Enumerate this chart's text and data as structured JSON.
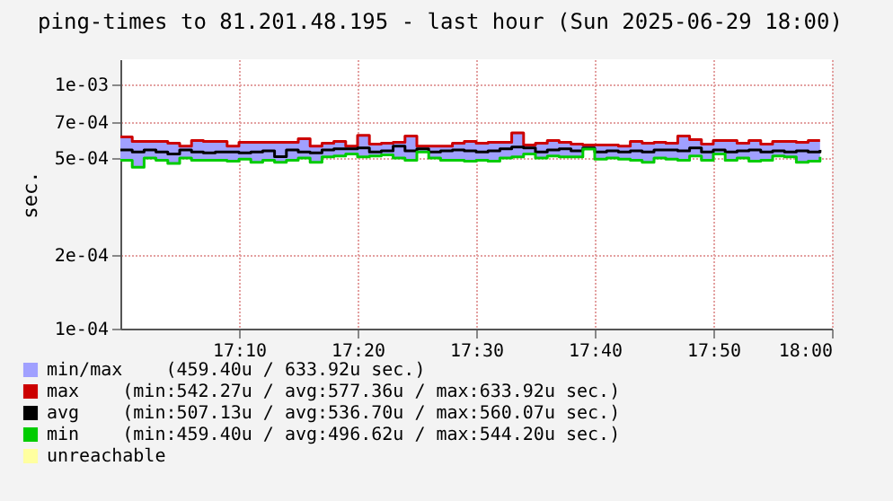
{
  "chart_data": {
    "type": "step",
    "title": "ping-times to 81.201.48.195 - last hour (Sun 2025-06-29 18:00)",
    "ylabel": "sec.",
    "x": [
      "2025-06-29T17:00",
      "2025-06-29T17:01",
      "2025-06-29T17:02",
      "2025-06-29T17:03",
      "2025-06-29T17:04",
      "2025-06-29T17:05",
      "2025-06-29T17:06",
      "2025-06-29T17:07",
      "2025-06-29T17:08",
      "2025-06-29T17:09",
      "2025-06-29T17:10",
      "2025-06-29T17:11",
      "2025-06-29T17:12",
      "2025-06-29T17:13",
      "2025-06-29T17:14",
      "2025-06-29T17:15",
      "2025-06-29T17:16",
      "2025-06-29T17:17",
      "2025-06-29T17:18",
      "2025-06-29T17:19",
      "2025-06-29T17:20",
      "2025-06-29T17:21",
      "2025-06-29T17:22",
      "2025-06-29T17:23",
      "2025-06-29T17:24",
      "2025-06-29T17:25",
      "2025-06-29T17:26",
      "2025-06-29T17:27",
      "2025-06-29T17:28",
      "2025-06-29T17:29",
      "2025-06-29T17:30",
      "2025-06-29T17:31",
      "2025-06-29T17:32",
      "2025-06-29T17:33",
      "2025-06-29T17:34",
      "2025-06-29T17:35",
      "2025-06-29T17:36",
      "2025-06-29T17:37",
      "2025-06-29T17:38",
      "2025-06-29T17:39",
      "2025-06-29T17:40",
      "2025-06-29T17:41",
      "2025-06-29T17:42",
      "2025-06-29T17:43",
      "2025-06-29T17:44",
      "2025-06-29T17:45",
      "2025-06-29T17:46",
      "2025-06-29T17:47",
      "2025-06-29T17:48",
      "2025-06-29T17:49",
      "2025-06-29T17:50",
      "2025-06-29T17:51",
      "2025-06-29T17:52",
      "2025-06-29T17:53",
      "2025-06-29T17:54",
      "2025-06-29T17:55",
      "2025-06-29T17:56",
      "2025-06-29T17:57",
      "2025-06-29T17:58",
      "2025-06-29T17:59"
    ],
    "xlim": [
      "2025-06-29T17:00",
      "2025-06-29T18:00"
    ],
    "xticks": [
      {
        "value": "2025-06-29T17:10",
        "label": "17:10"
      },
      {
        "value": "2025-06-29T17:20",
        "label": "17:20"
      },
      {
        "value": "2025-06-29T17:30",
        "label": "17:30"
      },
      {
        "value": "2025-06-29T17:40",
        "label": "17:40"
      },
      {
        "value": "2025-06-29T17:50",
        "label": "17:50"
      },
      {
        "value": "2025-06-29T18:00",
        "label": "18:00"
      }
    ],
    "ylim": [
      0.0001,
      0.00127
    ],
    "log": true,
    "yticks": [
      {
        "value": 0.0001,
        "label": "1e-04"
      },
      {
        "value": 0.0002,
        "label": "2e-04"
      },
      {
        "value": 0.0005,
        "label": "5e-04"
      },
      {
        "value": 0.0007,
        "label": "7e-04"
      },
      {
        "value": 0.001,
        "label": "1e-03"
      }
    ],
    "grid": true,
    "legend": "bottom",
    "series": [
      {
        "name": "min/max    (459.40u / 633.92u sec.)",
        "type": "area",
        "color": "#a0a0ff",
        "values": [
          null,
          null,
          null,
          null,
          null,
          null,
          null,
          null,
          null,
          null,
          null,
          null,
          null,
          null,
          null,
          null,
          null,
          null,
          null,
          null,
          null,
          null,
          null,
          null,
          null,
          null,
          null,
          null,
          null,
          null,
          null,
          null,
          null,
          null,
          null,
          null,
          null,
          null,
          null,
          null,
          null,
          null,
          null,
          null,
          null,
          null,
          null,
          null,
          null,
          null,
          null,
          null,
          null,
          null,
          null,
          null,
          null,
          null,
          null,
          null
        ]
      },
      {
        "name": "max    (min:542.27u / avg:577.36u / max:633.92u sec.)",
        "color": "#cc0000",
        "values": [
          0.00061,
          0.000585,
          0.000585,
          0.000585,
          0.000575,
          0.00056,
          0.00059,
          0.000585,
          0.000585,
          0.00056,
          0.00058,
          0.00058,
          0.00058,
          0.00058,
          0.00058,
          0.0006,
          0.00056,
          0.000575,
          0.000585,
          0.00056,
          0.00062,
          0.00057,
          0.000575,
          0.00058,
          0.000615,
          0.00056,
          0.00056,
          0.00056,
          0.000575,
          0.000585,
          0.000575,
          0.00058,
          0.00058,
          0.000634,
          0.000565,
          0.000575,
          0.00059,
          0.00058,
          0.00057,
          0.000565,
          0.000565,
          0.000565,
          0.00056,
          0.000585,
          0.000575,
          0.00058,
          0.000575,
          0.000615,
          0.000595,
          0.00057,
          0.00059,
          0.00059,
          0.000575,
          0.00059,
          0.00057,
          0.000585,
          0.000585,
          0.00058,
          0.00059,
          0.00059
        ]
      },
      {
        "name": "avg    (min:507.13u / avg:536.70u / max:560.07u sec.)",
        "color": "#000000",
        "values": [
          0.00054,
          0.00053,
          0.00054,
          0.00053,
          0.00052,
          0.00054,
          0.00053,
          0.000525,
          0.00053,
          0.00053,
          0.000525,
          0.00053,
          0.000535,
          0.000507,
          0.00054,
          0.00053,
          0.000525,
          0.00054,
          0.000545,
          0.000545,
          0.00055,
          0.00053,
          0.000535,
          0.00056,
          0.000535,
          0.000545,
          0.00053,
          0.000535,
          0.00054,
          0.000535,
          0.00053,
          0.000535,
          0.000545,
          0.000555,
          0.00055,
          0.00053,
          0.00054,
          0.000545,
          0.000535,
          0.00055,
          0.00053,
          0.000535,
          0.00053,
          0.000535,
          0.00053,
          0.00054,
          0.00054,
          0.000535,
          0.00055,
          0.00053,
          0.00054,
          0.00053,
          0.000535,
          0.00054,
          0.00053,
          0.000535,
          0.00053,
          0.000535,
          0.00053,
          0.00054
        ],
        "lower": [
          0.00049,
          0.000459,
          0.0005,
          0.00049,
          0.000475,
          0.0005,
          0.00049,
          0.00049,
          0.00049,
          0.000485,
          0.000495,
          0.00048,
          0.00049,
          0.00048,
          0.00049,
          0.0005,
          0.00048,
          0.000505,
          0.00051,
          0.00052,
          0.000505,
          0.00051,
          0.000515,
          0.0005,
          0.00049,
          0.00053,
          0.0005,
          0.00049,
          0.00049,
          0.000485,
          0.00049,
          0.000485,
          0.0005,
          0.000505,
          0.00052,
          0.0005,
          0.00051,
          0.000505,
          0.000505,
          0.000544,
          0.000495,
          0.0005,
          0.000495,
          0.00049,
          0.00048,
          0.0005,
          0.000495,
          0.00049,
          0.00051,
          0.00049,
          0.00052,
          0.00049,
          0.0005,
          0.000485,
          0.00049,
          0.00051,
          0.000505,
          0.00048,
          0.000485,
          0.000505
        ],
        "upper": [
          0.00061,
          0.000585,
          0.000585,
          0.000585,
          0.000575,
          0.00056,
          0.00059,
          0.000585,
          0.000585,
          0.00056,
          0.00058,
          0.00058,
          0.00058,
          0.00058,
          0.00058,
          0.0006,
          0.00056,
          0.000575,
          0.000585,
          0.00056,
          0.00062,
          0.00057,
          0.000575,
          0.00058,
          0.000615,
          0.00056,
          0.00056,
          0.00056,
          0.000575,
          0.000585,
          0.000575,
          0.00058,
          0.00058,
          0.000634,
          0.000565,
          0.000575,
          0.00059,
          0.00058,
          0.00057,
          0.000565,
          0.000565,
          0.000565,
          0.00056,
          0.000585,
          0.000575,
          0.00058,
          0.000575,
          0.000615,
          0.000595,
          0.00057,
          0.00059,
          0.00059,
          0.000575,
          0.00059,
          0.00057,
          0.000585,
          0.000585,
          0.00058,
          0.00059,
          0.00059
        ]
      },
      {
        "name": "min    (min:459.40u / avg:496.62u / max:544.20u sec.)",
        "color": "#00cc00",
        "values": [
          0.00049,
          0.000459,
          0.0005,
          0.00049,
          0.000475,
          0.0005,
          0.00049,
          0.00049,
          0.00049,
          0.000485,
          0.000495,
          0.00048,
          0.00049,
          0.00048,
          0.00049,
          0.0005,
          0.00048,
          0.000505,
          0.00051,
          0.00052,
          0.000505,
          0.00051,
          0.000515,
          0.0005,
          0.00049,
          0.00053,
          0.0005,
          0.00049,
          0.00049,
          0.000485,
          0.00049,
          0.000485,
          0.0005,
          0.000505,
          0.00052,
          0.0005,
          0.00051,
          0.000505,
          0.000505,
          0.000544,
          0.000495,
          0.0005,
          0.000495,
          0.00049,
          0.00048,
          0.0005,
          0.000495,
          0.00049,
          0.00051,
          0.00049,
          0.00052,
          0.00049,
          0.0005,
          0.000485,
          0.00049,
          0.00051,
          0.000505,
          0.00048,
          0.000485,
          0.000505
        ]
      },
      {
        "name": "unreachable",
        "color": "#ffffa0",
        "values": [
          null,
          null,
          null,
          null,
          null,
          null,
          null,
          null,
          null,
          null,
          null,
          null,
          null,
          null,
          null,
          null,
          null,
          null,
          null,
          null,
          null,
          null,
          null,
          null,
          null,
          null,
          null,
          null,
          null,
          null,
          null,
          null,
          null,
          null,
          null,
          null,
          null,
          null,
          null,
          null,
          null,
          null,
          null,
          null,
          null,
          null,
          null,
          null,
          null,
          null,
          null,
          null,
          null,
          null,
          null,
          null,
          null,
          null,
          null,
          null
        ]
      }
    ]
  }
}
